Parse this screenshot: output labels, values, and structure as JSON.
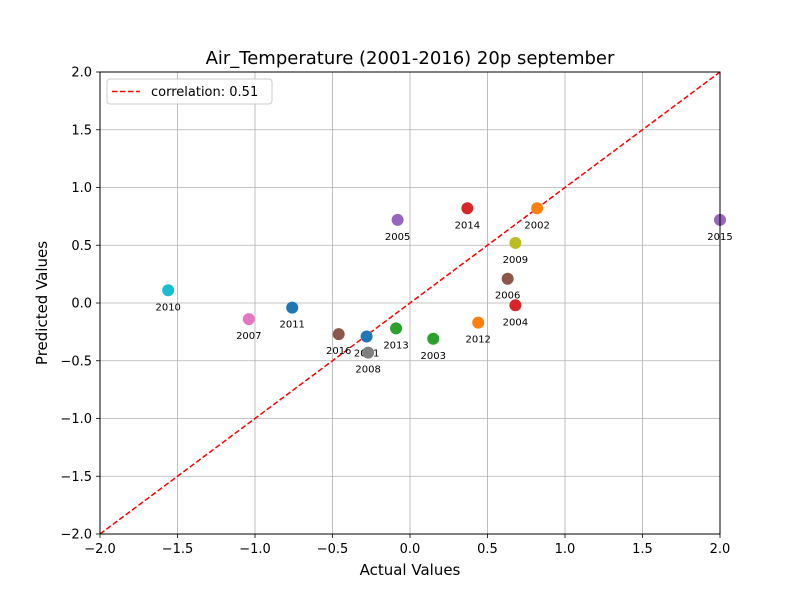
{
  "chart_data": {
    "type": "scatter",
    "title": "Air_Temperature (2001-2016) 20p september",
    "xlabel": "Actual Values",
    "ylabel": "Predicted Values",
    "xlim": [
      -2.0,
      2.0
    ],
    "ylim": [
      -2.0,
      2.0
    ],
    "grid": true,
    "xticks": [
      "−2.0",
      "−1.5",
      "−1.0",
      "−0.5",
      "0.0",
      "0.5",
      "1.0",
      "1.5",
      "2.0"
    ],
    "yticks": [
      "−2.0",
      "−1.5",
      "−1.0",
      "−0.5",
      "0.0",
      "0.5",
      "1.0",
      "1.5",
      "2.0"
    ],
    "legend": {
      "placement": "upper-left",
      "entries": [
        "correlation: 0.51"
      ]
    },
    "reference_line": {
      "style": "dashed",
      "color": "#ff0000",
      "x": [
        -2.0,
        2.0
      ],
      "y": [
        -2.0,
        2.0
      ]
    },
    "points": [
      {
        "label": "2001",
        "x": -0.28,
        "y": -0.29,
        "color": "#1f77b4"
      },
      {
        "label": "2002",
        "x": 0.82,
        "y": 0.82,
        "color": "#ff7f0e"
      },
      {
        "label": "2003",
        "x": 0.15,
        "y": -0.31,
        "color": "#2ca02c"
      },
      {
        "label": "2004",
        "x": 0.68,
        "y": -0.02,
        "color": "#d62728"
      },
      {
        "label": "2005",
        "x": -0.08,
        "y": 0.72,
        "color": "#9467bd"
      },
      {
        "label": "2006",
        "x": 0.63,
        "y": 0.21,
        "color": "#8c564b"
      },
      {
        "label": "2007",
        "x": -1.04,
        "y": -0.14,
        "color": "#e377c2"
      },
      {
        "label": "2008",
        "x": -0.27,
        "y": -0.43,
        "color": "#7f7f7f"
      },
      {
        "label": "2009",
        "x": 0.68,
        "y": 0.52,
        "color": "#bcbd22"
      },
      {
        "label": "2010",
        "x": -1.56,
        "y": 0.11,
        "color": "#17becf"
      },
      {
        "label": "2011",
        "x": -0.76,
        "y": -0.04,
        "color": "#1f77b4"
      },
      {
        "label": "2012",
        "x": 0.44,
        "y": -0.17,
        "color": "#ff7f0e"
      },
      {
        "label": "2013",
        "x": -0.09,
        "y": -0.22,
        "color": "#2ca02c"
      },
      {
        "label": "2014",
        "x": 0.37,
        "y": 0.82,
        "color": "#d62728"
      },
      {
        "label": "2015",
        "x": 2.0,
        "y": 0.72,
        "color": "#9467bd"
      },
      {
        "label": "2016",
        "x": -0.46,
        "y": -0.27,
        "color": "#8c564b"
      }
    ]
  }
}
